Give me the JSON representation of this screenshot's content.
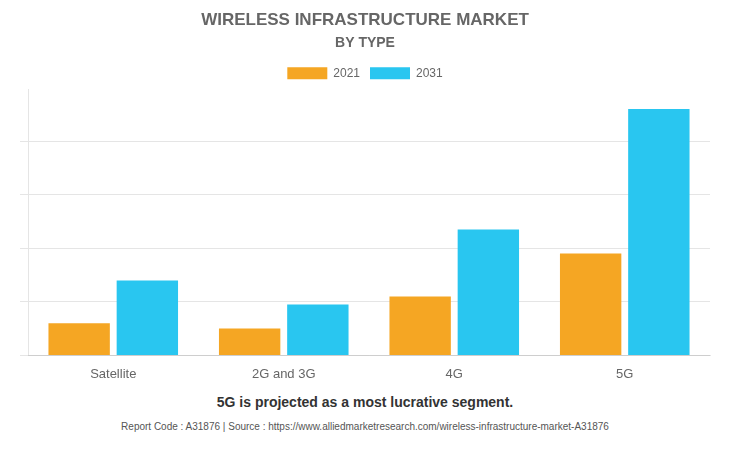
{
  "chart_data": {
    "type": "bar",
    "title": "WIRELESS INFRASTRUCTURE MARKET",
    "subtitle": "BY TYPE",
    "categories": [
      "Satellite",
      "2G and 3G",
      "4G",
      "5G"
    ],
    "series": [
      {
        "name": "2021",
        "color": "#F5A623",
        "values": [
          0.12,
          0.1,
          0.22,
          0.38
        ]
      },
      {
        "name": "2031",
        "color": "#29C6F0",
        "values": [
          0.28,
          0.19,
          0.47,
          0.92
        ]
      }
    ],
    "ylim": [
      0,
      0.9936
    ],
    "yticks": [
      0,
      0.2,
      0.4,
      0.6,
      0.8
    ],
    "grid": true,
    "legend": "top",
    "tick_labels": "x",
    "annotations": [
      "5G is projected as a most lucrative segment.",
      "Report Code : A31876  |  Source : https://www.alliedmarketresearch.com/wireless-infrastructure-market-A31876"
    ]
  }
}
